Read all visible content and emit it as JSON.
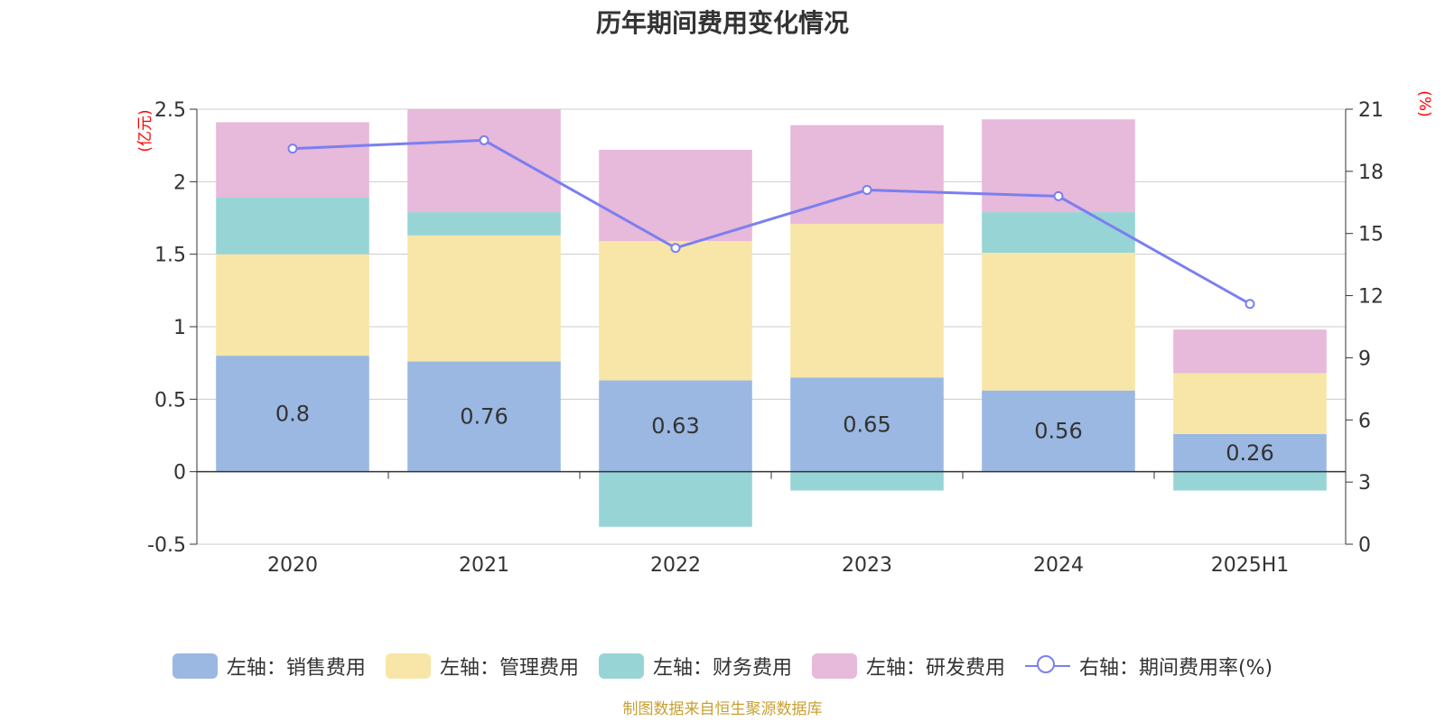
{
  "title": "历年期间费用变化情况",
  "source": "制图数据来自恒生聚源数据库",
  "colors": {
    "sales": "#9bb8e2",
    "admin": "#f7e6a7",
    "finance": "#97d4d5",
    "rnd": "#e7b9da",
    "rate": "#7b7ff0"
  },
  "chart_data": {
    "type": "bar",
    "stacked": true,
    "categories": [
      "2020",
      "2021",
      "2022",
      "2023",
      "2024",
      "2025H1"
    ],
    "y_left": {
      "unit": "(亿元)",
      "ylim": [
        -0.5,
        2.5
      ],
      "ticks": [
        "2.5",
        "2",
        "1.5",
        "1",
        "0.5",
        "0",
        "-0.5"
      ]
    },
    "y_right": {
      "unit": "(%)",
      "ylim": [
        0,
        21
      ],
      "ticks": [
        "21",
        "18",
        "15",
        "12",
        "9",
        "6",
        "3",
        "0"
      ]
    },
    "grid": true,
    "legend_position": "bottom",
    "series": [
      {
        "name": "左轴：销售费用",
        "key": "sales",
        "axis": "left",
        "values": [
          0.8,
          0.76,
          0.63,
          0.65,
          0.56,
          0.26
        ],
        "labels": [
          "0.8",
          "0.76",
          "0.63",
          "0.65",
          "0.56",
          "0.26"
        ]
      },
      {
        "name": "左轴：管理费用",
        "key": "admin",
        "axis": "left",
        "values": [
          0.7,
          0.87,
          0.96,
          1.06,
          0.95,
          0.42
        ]
      },
      {
        "name": "左轴：财务费用",
        "key": "finance",
        "axis": "left",
        "values": [
          0.39,
          0.16,
          -0.38,
          -0.13,
          0.28,
          -0.13
        ]
      },
      {
        "name": "左轴：研发费用",
        "key": "rnd",
        "axis": "left",
        "values": [
          0.52,
          0.71,
          0.63,
          0.68,
          0.64,
          0.3
        ]
      },
      {
        "name": "右轴：期间费用率(%)",
        "key": "rate",
        "axis": "right",
        "type": "line",
        "values": [
          19.1,
          19.5,
          14.3,
          17.1,
          16.8,
          11.6
        ]
      }
    ]
  }
}
